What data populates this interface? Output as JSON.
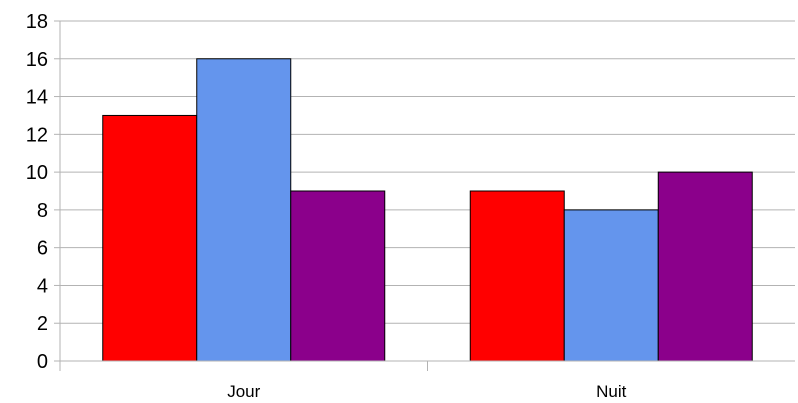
{
  "chart_data": {
    "type": "bar",
    "categories": [
      "Jour",
      "Nuit"
    ],
    "series": [
      {
        "values": [
          13,
          9
        ],
        "color": "#ff0000"
      },
      {
        "values": [
          16,
          8
        ],
        "color": "#6495ed"
      },
      {
        "values": [
          9,
          10
        ],
        "color": "#8b008b"
      }
    ],
    "ylim": [
      0,
      18
    ],
    "yticks": [
      0,
      2,
      4,
      6,
      8,
      10,
      12,
      14,
      16,
      18
    ],
    "grid": true,
    "legend": "none",
    "title": "",
    "xlabel": "",
    "ylabel": ""
  }
}
